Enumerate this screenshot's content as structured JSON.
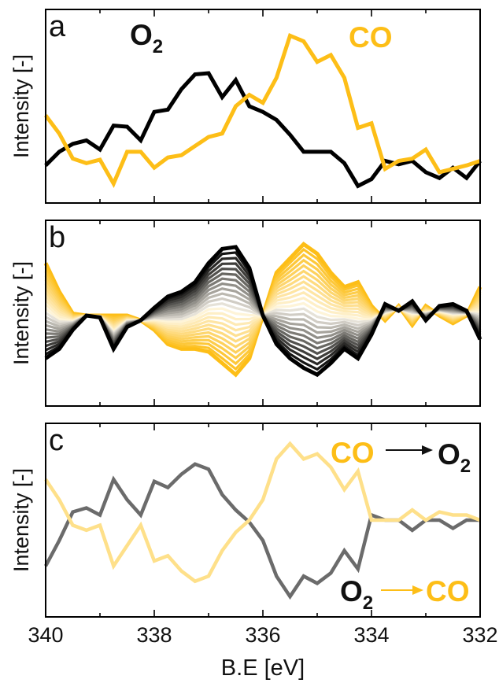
{
  "chart_data": [
    {
      "panel": "a",
      "type": "line",
      "xlabel": "",
      "ylabel": "Intensity [-]",
      "xlim": [
        340,
        332
      ],
      "x_reversed": true,
      "annotations": [
        {
          "text": "O",
          "sub": "2",
          "color": "#111111"
        },
        {
          "text": "CO",
          "color": "#FDBE17"
        }
      ],
      "series": [
        {
          "name": "O2",
          "color": "#000000",
          "x": [
            340,
            339.75,
            339.5,
            339.25,
            339,
            338.75,
            338.5,
            338.25,
            338,
            337.75,
            337.5,
            337.25,
            337,
            336.75,
            336.5,
            336.25,
            336,
            335.75,
            335.5,
            335.25,
            335,
            334.75,
            334.5,
            334.25,
            334,
            333.75,
            333.5,
            333.25,
            333,
            332.75,
            332.5,
            332.25,
            332
          ],
          "y": [
            0.08,
            0.2,
            0.27,
            0.3,
            0.22,
            0.43,
            0.42,
            0.3,
            0.55,
            0.57,
            0.75,
            0.88,
            0.89,
            0.68,
            0.83,
            0.6,
            0.55,
            0.48,
            0.35,
            0.2,
            0.2,
            0.2,
            0.1,
            -0.1,
            -0.04,
            0.12,
            0.09,
            0.12,
            0.02,
            -0.03,
            0.06,
            -0.03,
            0.12
          ]
        },
        {
          "name": "CO",
          "color": "#FDBE17",
          "x": [
            340,
            339.75,
            339.5,
            339.25,
            339,
            338.75,
            338.5,
            338.25,
            338,
            337.75,
            337.5,
            337.25,
            337,
            336.75,
            336.5,
            336.25,
            336,
            335.75,
            335.5,
            335.25,
            335,
            334.75,
            334.5,
            334.25,
            334,
            333.75,
            333.5,
            333.25,
            333,
            332.75,
            332.5,
            332.25,
            332
          ],
          "y": [
            0.52,
            0.36,
            0.14,
            0.1,
            0.13,
            -0.08,
            0.2,
            0.2,
            0.06,
            0.15,
            0.17,
            0.25,
            0.33,
            0.36,
            0.6,
            0.7,
            0.63,
            0.85,
            1.22,
            1.17,
            0.99,
            1.05,
            0.85,
            0.41,
            0.45,
            0.05,
            0.12,
            0.14,
            0.22,
            0.02,
            0.05,
            0.08,
            0.12
          ]
        }
      ]
    },
    {
      "panel": "b",
      "type": "line",
      "xlabel": "",
      "ylabel": "Intensity [-]",
      "xlim": [
        340,
        332
      ],
      "x_reversed": true,
      "series_count": 24,
      "color_start": "#FDBE17",
      "color_end": "#000000",
      "x": [
        340,
        339.75,
        339.5,
        339.25,
        339,
        338.75,
        338.5,
        338.25,
        338,
        337.75,
        337.5,
        337.25,
        337,
        336.75,
        336.5,
        336.25,
        336,
        335.75,
        335.5,
        335.25,
        335,
        334.75,
        334.5,
        334.25,
        334,
        333.75,
        333.5,
        333.25,
        333,
        332.75,
        332.5,
        332.25,
        332
      ],
      "first": [
        0.55,
        0.25,
        0.02,
        0.0,
        0.0,
        0.0,
        0.0,
        -0.05,
        -0.15,
        -0.3,
        -0.35,
        -0.35,
        -0.38,
        -0.5,
        -0.62,
        -0.45,
        0.0,
        0.45,
        0.6,
        0.75,
        0.65,
        0.45,
        0.3,
        0.35,
        0.1,
        -0.05,
        0.1,
        -0.1,
        0.1,
        0.0,
        -0.08,
        0.0,
        0.3
      ],
      "last": [
        -0.45,
        -0.35,
        -0.15,
        0.0,
        -0.02,
        -0.35,
        -0.12,
        -0.05,
        0.08,
        0.2,
        0.25,
        0.35,
        0.55,
        0.7,
        0.72,
        0.5,
        0.0,
        -0.3,
        -0.45,
        -0.55,
        -0.62,
        -0.5,
        -0.35,
        -0.45,
        -0.2,
        0.12,
        0.05,
        0.15,
        -0.05,
        0.1,
        0.12,
        0.05,
        -0.25
      ]
    },
    {
      "panel": "c",
      "type": "line",
      "xlabel": "B.E [eV]",
      "ylabel": "Intensity [-]",
      "xlim": [
        340,
        332
      ],
      "x_reversed": true,
      "x_ticks": [
        340,
        338,
        336,
        334,
        332
      ],
      "annotations": [
        {
          "from": "CO",
          "to": "O",
          "to_sub": "2",
          "from_color": "#FDBE17",
          "to_color": "#111111",
          "arrow_color": "#111111"
        },
        {
          "from": "O",
          "from_sub": "2",
          "to": "CO",
          "from_color": "#111111",
          "to_color": "#FDBE17",
          "arrow_color": "#FDBE17"
        }
      ],
      "series": [
        {
          "name": "CO → O2",
          "color": "#6b6b6b",
          "x": [
            340,
            339.75,
            339.5,
            339.25,
            339,
            338.75,
            338.5,
            338.25,
            338,
            337.75,
            337.5,
            337.25,
            337,
            336.75,
            336.5,
            336.25,
            336,
            335.75,
            335.5,
            335.25,
            335,
            334.75,
            334.5,
            334.25,
            334,
            333.75,
            333.5,
            333.25,
            333,
            332.75,
            332.5,
            332.25,
            332
          ],
          "y": [
            -0.45,
            -0.2,
            0.08,
            0.12,
            0.05,
            0.4,
            0.2,
            0.05,
            0.38,
            0.32,
            0.45,
            0.55,
            0.5,
            0.25,
            0.1,
            -0.02,
            -0.2,
            -0.55,
            -0.75,
            -0.55,
            -0.62,
            -0.52,
            -0.3,
            -0.48,
            0.05,
            0.0,
            0.0,
            -0.1,
            0.0,
            0.0,
            -0.08,
            0.0,
            0.0
          ]
        },
        {
          "name": "O2 → CO",
          "color": "#FEE08A",
          "x": [
            340,
            339.75,
            339.5,
            339.25,
            339,
            338.75,
            338.5,
            338.25,
            338,
            337.75,
            337.5,
            337.25,
            337,
            336.75,
            336.5,
            336.25,
            336,
            335.75,
            335.5,
            335.25,
            335,
            334.75,
            334.5,
            334.25,
            334,
            333.75,
            333.5,
            333.25,
            333,
            332.75,
            332.5,
            332.25,
            332
          ],
          "y": [
            0.4,
            0.2,
            -0.05,
            -0.1,
            -0.05,
            -0.45,
            -0.25,
            -0.05,
            -0.4,
            -0.35,
            -0.5,
            -0.6,
            -0.55,
            -0.3,
            -0.12,
            0.0,
            0.2,
            0.6,
            0.75,
            0.6,
            0.65,
            0.52,
            0.3,
            0.48,
            0.0,
            0.0,
            0.0,
            0.1,
            0.0,
            0.08,
            0.05,
            0.05,
            0.0
          ]
        }
      ]
    }
  ]
}
